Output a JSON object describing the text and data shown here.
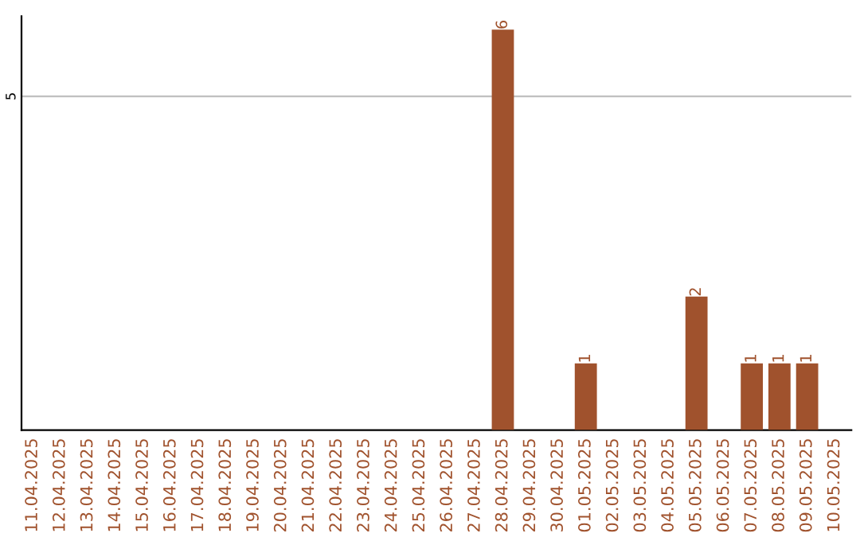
{
  "chart_data": {
    "type": "bar",
    "categories": [
      "11.04.2025",
      "12.04.2025",
      "13.04.2025",
      "14.04.2025",
      "15.04.2025",
      "16.04.2025",
      "17.04.2025",
      "18.04.2025",
      "19.04.2025",
      "20.04.2025",
      "21.04.2025",
      "22.04.2025",
      "23.04.2025",
      "24.04.2025",
      "25.04.2025",
      "26.04.2025",
      "27.04.2025",
      "28.04.2025",
      "29.04.2025",
      "30.04.2025",
      "01.05.2025",
      "02.05.2025",
      "03.05.2025",
      "04.05.2025",
      "05.05.2025",
      "06.05.2025",
      "07.05.2025",
      "08.05.2025",
      "09.05.2025",
      "10.05.2025"
    ],
    "values": [
      null,
      null,
      null,
      null,
      null,
      null,
      null,
      null,
      null,
      null,
      null,
      null,
      null,
      null,
      null,
      null,
      null,
      6,
      null,
      null,
      1,
      null,
      null,
      null,
      2,
      null,
      1,
      1,
      1,
      null
    ],
    "value_labels": [
      null,
      null,
      null,
      null,
      null,
      null,
      null,
      null,
      null,
      null,
      null,
      null,
      null,
      null,
      null,
      null,
      null,
      "6",
      null,
      null,
      "1",
      null,
      null,
      null,
      "2",
      null,
      "1",
      "1",
      "1",
      null
    ],
    "color": "#a0522d",
    "ylim": [
      0,
      6.2
    ],
    "ref_lines": [
      {
        "axis": "y",
        "value": 5,
        "label": "5",
        "color": "#c0c0c0"
      }
    ]
  }
}
